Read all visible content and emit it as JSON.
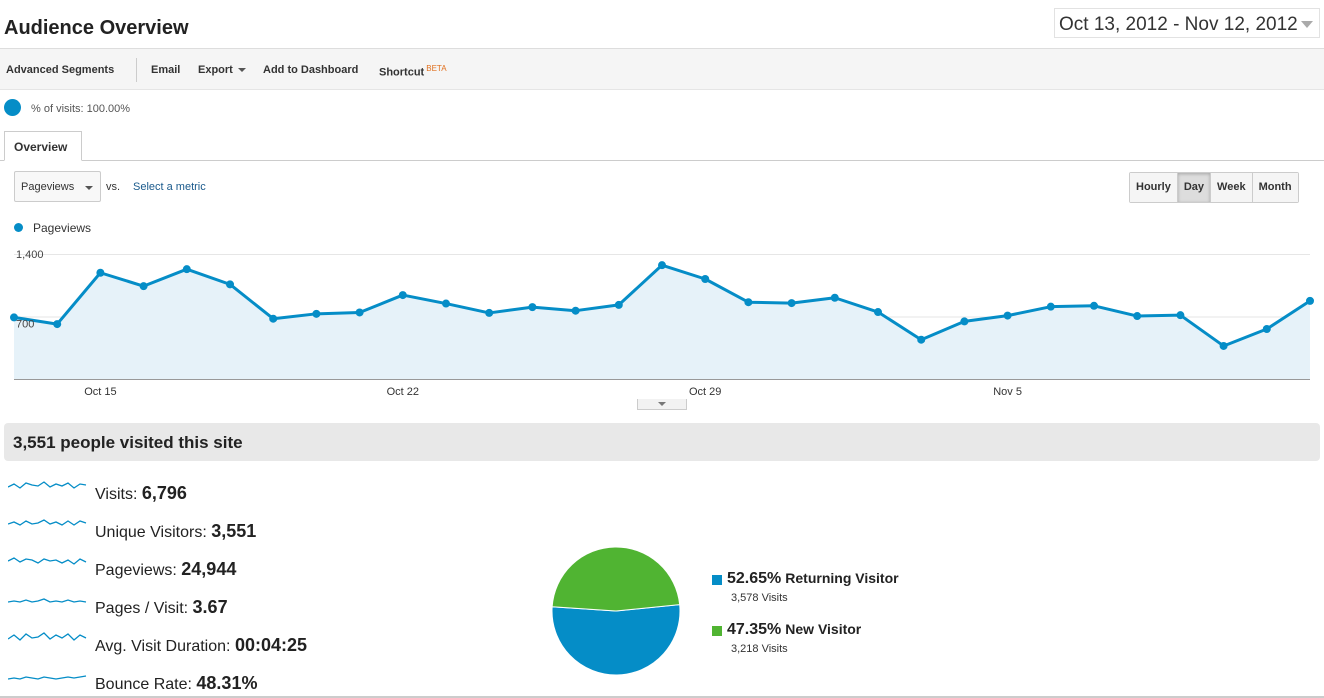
{
  "header": {
    "title": "Audience Overview",
    "date_range": "Oct 13, 2012 - Nov 12, 2012"
  },
  "toolbar": {
    "advanced_segments": "Advanced Segments",
    "email": "Email",
    "export": "Export",
    "add_to_dashboard": "Add to Dashboard",
    "shortcut": "Shortcut",
    "beta": "BETA"
  },
  "segment": {
    "label": "% of visits: 100.00%",
    "color": "#058dc7"
  },
  "tabs": [
    {
      "label": "Overview"
    }
  ],
  "chart_controls": {
    "metric": "Pageviews",
    "vs": "vs.",
    "select_metric": "Select a metric",
    "periods": [
      "Hourly",
      "Day",
      "Week",
      "Month"
    ],
    "active_period": "Day"
  },
  "chart_data": [
    {
      "type": "area",
      "series": [
        {
          "name": "Pageviews",
          "color": "#058dc7",
          "x": [
            "Oct 13",
            "Oct 14",
            "Oct 15",
            "Oct 16",
            "Oct 17",
            "Oct 18",
            "Oct 19",
            "Oct 20",
            "Oct 21",
            "Oct 22",
            "Oct 23",
            "Oct 24",
            "Oct 25",
            "Oct 26",
            "Oct 27",
            "Oct 28",
            "Oct 29",
            "Oct 30",
            "Oct 31",
            "Nov 1",
            "Nov 2",
            "Nov 3",
            "Nov 4",
            "Nov 5",
            "Nov 6",
            "Nov 7",
            "Nov 8",
            "Nov 9",
            "Nov 10",
            "Nov 11",
            "Nov 12"
          ],
          "values": [
            690,
            615,
            1190,
            1040,
            1230,
            1060,
            675,
            730,
            745,
            940,
            845,
            740,
            805,
            765,
            830,
            1275,
            1120,
            860,
            850,
            910,
            750,
            440,
            645,
            710,
            810,
            820,
            705,
            715,
            370,
            560,
            875
          ]
        }
      ],
      "x_tick_labels": [
        "Oct 15",
        "Oct 22",
        "Oct 29",
        "Nov 5"
      ],
      "y_tick_labels": [
        "1,400",
        "700"
      ],
      "ylim": [
        0,
        1400
      ],
      "grid": true,
      "legend": "top-left"
    },
    {
      "type": "pie",
      "slices": [
        {
          "label": "Returning Visitor",
          "percent": "52.65%",
          "visits": "3,578 Visits",
          "value": 52.65,
          "color": "#058dc7"
        },
        {
          "label": "New Visitor",
          "percent": "47.35%",
          "visits": "3,218 Visits",
          "value": 47.35,
          "color": "#50b432"
        }
      ]
    }
  ],
  "summary": {
    "headline": "3,551 people visited this site",
    "metrics": [
      {
        "label": "Visits:",
        "value": "6,796"
      },
      {
        "label": "Unique Visitors:",
        "value": "3,551"
      },
      {
        "label": "Pageviews:",
        "value": "24,944"
      },
      {
        "label": "Pages / Visit:",
        "value": "3.67"
      },
      {
        "label": "Avg. Visit Duration:",
        "value": "00:04:25"
      },
      {
        "label": "Bounce Rate:",
        "value": "48.31%"
      }
    ]
  }
}
